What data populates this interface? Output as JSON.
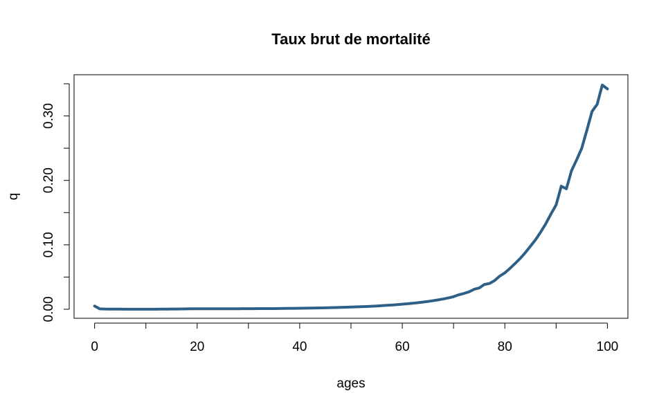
{
  "chart_data": {
    "type": "line",
    "title": "Taux brut de mortalité",
    "xlabel": "ages",
    "ylabel": "q",
    "xlim": [
      -4,
      104
    ],
    "ylim": [
      -0.014,
      0.364
    ],
    "x_ticks": [
      0,
      20,
      40,
      60,
      80,
      100
    ],
    "x_tick_labels": [
      "0",
      "20",
      "40",
      "60",
      "80",
      "100"
    ],
    "y_ticks": [
      0.0,
      0.1,
      0.2,
      0.3
    ],
    "y_tick_labels": [
      "0.00",
      "0.10",
      "0.20",
      "0.30"
    ],
    "grid": false,
    "line_color": "#2e5f86",
    "series": [
      {
        "x": [
          0,
          1,
          2,
          3,
          4,
          5,
          6,
          7,
          8,
          9,
          10,
          11,
          12,
          13,
          14,
          15,
          16,
          17,
          18,
          19,
          20,
          21,
          22,
          23,
          24,
          25,
          26,
          27,
          28,
          29,
          30,
          31,
          32,
          33,
          34,
          35,
          36,
          37,
          38,
          39,
          40,
          41,
          42,
          43,
          44,
          45,
          46,
          47,
          48,
          49,
          50,
          51,
          52,
          53,
          54,
          55,
          56,
          57,
          58,
          59,
          60,
          61,
          62,
          63,
          64,
          65,
          66,
          67,
          68,
          69,
          70,
          71,
          72,
          73,
          74,
          75,
          76,
          77,
          78,
          79,
          80,
          81,
          82,
          83,
          84,
          85,
          86,
          87,
          88,
          89,
          90,
          91,
          92,
          93,
          94,
          95,
          96,
          97,
          98,
          99,
          100
        ],
        "values": [
          0.005,
          0.0006,
          0.0003,
          0.0002,
          0.0002,
          0.0002,
          0.0001,
          0.0001,
          0.0001,
          0.0001,
          0.0001,
          0.0001,
          0.0001,
          0.0002,
          0.0002,
          0.0003,
          0.0004,
          0.0005,
          0.0006,
          0.0007,
          0.0008,
          0.0008,
          0.0008,
          0.0008,
          0.0008,
          0.0008,
          0.0008,
          0.0008,
          0.0008,
          0.0009,
          0.0009,
          0.0009,
          0.001,
          0.001,
          0.0011,
          0.0011,
          0.0012,
          0.0013,
          0.0014,
          0.0015,
          0.0016,
          0.0017,
          0.0018,
          0.002,
          0.0021,
          0.0023,
          0.0025,
          0.0027,
          0.0029,
          0.0032,
          0.0034,
          0.0037,
          0.004,
          0.0043,
          0.0047,
          0.0051,
          0.0056,
          0.0061,
          0.0066,
          0.0072,
          0.0079,
          0.0086,
          0.0093,
          0.0102,
          0.0111,
          0.0121,
          0.0133,
          0.0146,
          0.016,
          0.0176,
          0.0195,
          0.0225,
          0.0245,
          0.027,
          0.031,
          0.033,
          0.0385,
          0.04,
          0.0445,
          0.0515,
          0.0565,
          0.0635,
          0.071,
          0.079,
          0.088,
          0.098,
          0.108,
          0.12,
          0.133,
          0.148,
          0.162,
          0.191,
          0.187,
          0.215,
          0.232,
          0.25,
          0.278,
          0.307,
          0.318,
          0.348,
          0.342
        ]
      }
    ]
  }
}
